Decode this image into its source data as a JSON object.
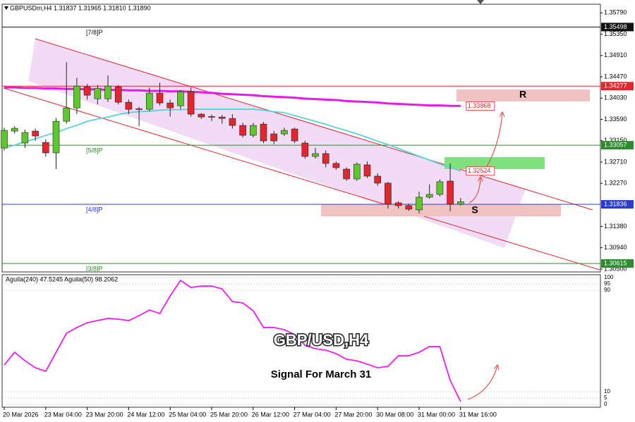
{
  "chart_data": [
    {
      "type": "candlestick",
      "title": "GBPUSDm,H4 1.31837 1.31965 1.31810 1.31890",
      "overlay_title": "GBP/USD,H4",
      "overlay_subtitle": "Signal For March 31",
      "zone_labels": [
        "R",
        "S"
      ],
      "categories": [
        "20 Mar 2026",
        null,
        null,
        null,
        "23 Mar 04:00",
        null,
        null,
        null,
        "23 Mar 20:00",
        null,
        null,
        null,
        "24 Mar 12:00",
        null,
        null,
        null,
        "25 Mar 04:00",
        null,
        null,
        null,
        "25 Mar 20:00",
        null,
        null,
        null,
        "26 Mar 12:00",
        null,
        null,
        null,
        "27 Mar 04:00",
        null,
        null,
        null,
        "27 Mar 20:00",
        null,
        null,
        null,
        "30 Mar 08:00",
        null,
        null,
        null,
        "31 Mar 00:00",
        null,
        null,
        null,
        "31 Mar 16:00"
      ],
      "open": [
        1.33,
        1.33349,
        1.33102,
        1.33349,
        1.33116,
        1.32899,
        1.33552,
        1.33828,
        1.34264,
        1.34017,
        1.34017,
        1.34264,
        1.33945,
        1.3381,
        1.33799,
        1.34134,
        1.3393,
        1.33872,
        1.34163,
        1.33698,
        1.3365,
        1.3364,
        1.3361,
        1.33465,
        1.33262,
        1.33494,
        1.33291,
        1.33291,
        1.33393,
        1.33102,
        1.32826,
        1.32884,
        1.32681,
        1.32564,
        1.32361,
        1.32652,
        1.32419,
        1.32274,
        1.31867,
        1.31809,
        1.31722,
        1.31983,
        1.32041,
        1.32317,
        1.31837
      ],
      "high": [
        1.3342,
        1.3345,
        1.3338,
        1.334,
        1.3318,
        1.3362,
        1.34773,
        1.3445,
        1.3432,
        1.343,
        1.345,
        1.343,
        1.34,
        1.3385,
        1.3425,
        1.3435,
        1.34,
        1.342,
        1.3425,
        1.3372,
        1.3369,
        1.3368,
        1.337,
        1.3352,
        1.3352,
        1.3354,
        1.3335,
        1.3342,
        1.3342,
        1.3315,
        1.33,
        1.3295,
        1.3272,
        1.326,
        1.327,
        1.3272,
        1.3248,
        1.323,
        1.319,
        1.3185,
        1.321,
        1.3225,
        1.3235,
        1.32681,
        1.31965
      ],
      "low": [
        1.3295,
        1.333,
        1.33,
        1.3315,
        1.3282,
        1.32564,
        1.335,
        1.337,
        1.34,
        1.339,
        1.3395,
        1.339,
        1.337,
        1.3345,
        1.3376,
        1.3388,
        1.3365,
        1.338,
        1.3365,
        1.336,
        1.3356,
        1.335,
        1.334,
        1.3322,
        1.3322,
        1.331,
        1.3308,
        1.3325,
        1.331,
        1.3278,
        1.3278,
        1.326,
        1.3255,
        1.3232,
        1.3232,
        1.3238,
        1.3222,
        1.3175,
        1.3175,
        1.317,
        1.3165,
        1.3195,
        1.32,
        1.31693,
        1.3181
      ],
      "close": [
        1.33364,
        1.33407,
        1.3332,
        1.33247,
        1.32899,
        1.33552,
        1.33828,
        1.34279,
        1.3409,
        1.34235,
        1.34279,
        1.33945,
        1.33799,
        1.33799,
        1.34134,
        1.3393,
        1.33828,
        1.34163,
        1.33698,
        1.3364,
        1.3364,
        1.3361,
        1.33465,
        1.33262,
        1.33465,
        1.33146,
        1.33146,
        1.33364,
        1.33146,
        1.32826,
        1.32884,
        1.32681,
        1.32593,
        1.32361,
        1.32666,
        1.32419,
        1.32274,
        1.31838,
        1.31809,
        1.31736,
        1.31983,
        1.32041,
        1.32303,
        1.31838,
        1.3189
      ],
      "up_color": "#5cc82c",
      "down_color": "#e3262d",
      "series": [
        {
          "color": "#e21ce6",
          "values": [
            1.3425,
            1.3425,
            1.3424,
            1.3424,
            1.3423,
            1.3423,
            1.3422,
            1.3422,
            1.3421,
            1.3421,
            1.342,
            1.342,
            1.3419,
            1.3419,
            1.3418,
            1.3418,
            1.3417,
            1.3417,
            1.3416,
            1.3415,
            1.3414,
            1.3412,
            1.3411,
            1.341,
            1.3409,
            1.3407,
            1.3406,
            1.3405,
            1.3404,
            1.3402,
            1.3401,
            1.34,
            1.3399,
            1.3397,
            1.3396,
            1.3395,
            1.3394,
            1.3392,
            1.3391,
            1.339,
            1.3389,
            1.3388,
            1.3388,
            1.3387,
            1.33868
          ]
        },
        {
          "color": "#56d3d6",
          "values": [
            1.33,
            1.3306,
            1.3313,
            1.3319,
            1.3326,
            1.3332,
            1.334,
            1.3347,
            1.3355,
            1.336,
            1.3364,
            1.3369,
            1.3373,
            1.3375,
            1.3376,
            1.3378,
            1.3379,
            1.3379,
            1.338,
            1.338,
            1.338,
            1.338,
            1.338,
            1.338,
            1.338,
            1.3378,
            1.3375,
            1.3373,
            1.3367,
            1.3361,
            1.3355,
            1.3349,
            1.3342,
            1.3336,
            1.3329,
            1.3322,
            1.3314,
            1.3307,
            1.3299,
            1.3291,
            1.3283,
            1.3275,
            1.3267,
            1.326,
            1.32524
          ]
        }
      ],
      "levels": [
        {
          "value": 1.35498,
          "label": "[7/8]P",
          "color": "#111111"
        },
        {
          "value": 1.34277,
          "color": "#e3262d"
        },
        {
          "value": 1.33057,
          "label": "[5/8]P",
          "color": "#2f8a2f"
        },
        {
          "value": 1.31836,
          "label": "[4/8]P",
          "color": "#2a3bd0"
        },
        {
          "value": 1.30615,
          "label": "[3/8]P",
          "color": "#2f8a2f"
        }
      ],
      "ylim": [
        1.3044,
        1.3594
      ],
      "yticks": [
        {
          "value": 1.3579,
          "label": "1.35790"
        },
        {
          "value": 1.3535,
          "label": "1.35350"
        },
        {
          "value": 1.3491,
          "label": "1.34910"
        },
        {
          "value": 1.3447,
          "label": "1.34470"
        },
        {
          "value": 1.3403,
          "label": "1.34030"
        },
        {
          "value": 1.3359,
          "label": "1.33590"
        },
        {
          "value": 1.3315,
          "label": "1.33150"
        },
        {
          "value": 1.3271,
          "label": "1.32710"
        },
        {
          "value": 1.3227,
          "label": "1.32270"
        },
        {
          "value": 1.3138,
          "label": "1.31380"
        },
        {
          "value": 1.3094,
          "label": "1.30940"
        },
        {
          "value": 1.305,
          "label": "1.30500"
        }
      ]
    },
    {
      "type": "line",
      "title": "Aguila(240) 47.5245  Aguila(50) 98.2062",
      "series": [
        {
          "color": "#f01cf0",
          "values": [
            31.1,
            41.1,
            34.4,
            28.9,
            26.1,
            41.1,
            56.1,
            60.6,
            64.4,
            66.1,
            67.8,
            67.2,
            66.1,
            70.0,
            74.4,
            71.7,
            85.6,
            97.8,
            92.2,
            93.3,
            93.3,
            91.1,
            81.1,
            80.0,
            73.9,
            60.6,
            60.6,
            58.9,
            55.0,
            46.7,
            43.9,
            42.8,
            40.0,
            35.6,
            34.4,
            31.7,
            28.9,
            30.0,
            38.3,
            38.3,
            41.1,
            45.6,
            45.6,
            18.9,
            2.2
          ]
        }
      ],
      "ylim": [
        0,
        100
      ],
      "yticks": [
        100,
        95,
        90,
        10,
        5,
        0
      ]
    }
  ]
}
